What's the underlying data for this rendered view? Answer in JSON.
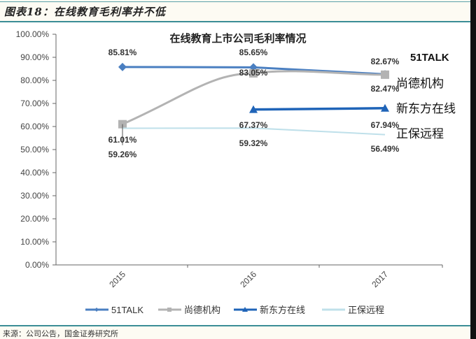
{
  "caption": "图表18：在线教育毛利率并不低",
  "source": "来源：公司公告，国金证券研究所",
  "chart_data": {
    "type": "line",
    "title": "在线教育上市公司毛利率情况",
    "xlabel": "",
    "ylabel": "",
    "categories": [
      "2015",
      "2016",
      "2017"
    ],
    "ylim": [
      0,
      100
    ],
    "yticks": [
      "0.00%",
      "10.00%",
      "20.00%",
      "30.00%",
      "40.00%",
      "50.00%",
      "60.00%",
      "70.00%",
      "80.00%",
      "90.00%",
      "100.00%"
    ],
    "grid": false,
    "legend_position": "bottom",
    "series": [
      {
        "name": "51TALK",
        "values": [
          85.81,
          85.65,
          82.67
        ],
        "labels": [
          "85.81%",
          "85.65%",
          "82.67%"
        ],
        "color": "#4a7fc1",
        "marker": "diamond"
      },
      {
        "name": "尚德机构",
        "values": [
          61.01,
          83.05,
          82.47
        ],
        "labels": [
          "61.01%",
          "83.05%",
          "82.47%"
        ],
        "color": "#b3b3b3",
        "marker": "square"
      },
      {
        "name": "新东方在线",
        "values": [
          null,
          67.37,
          67.94
        ],
        "labels": [
          "",
          "67.37%",
          "67.94%"
        ],
        "color": "#1f64b8",
        "marker": "triangle"
      },
      {
        "name": "正保远程",
        "values": [
          59.26,
          59.32,
          56.49
        ],
        "labels": [
          "59.26%",
          "59.32%",
          "56.49%"
        ],
        "color": "#bfe0ea",
        "marker": "none"
      }
    ],
    "annotations": [
      "51TALK",
      "尚德机构",
      "新东方在线",
      "正保远程"
    ]
  }
}
